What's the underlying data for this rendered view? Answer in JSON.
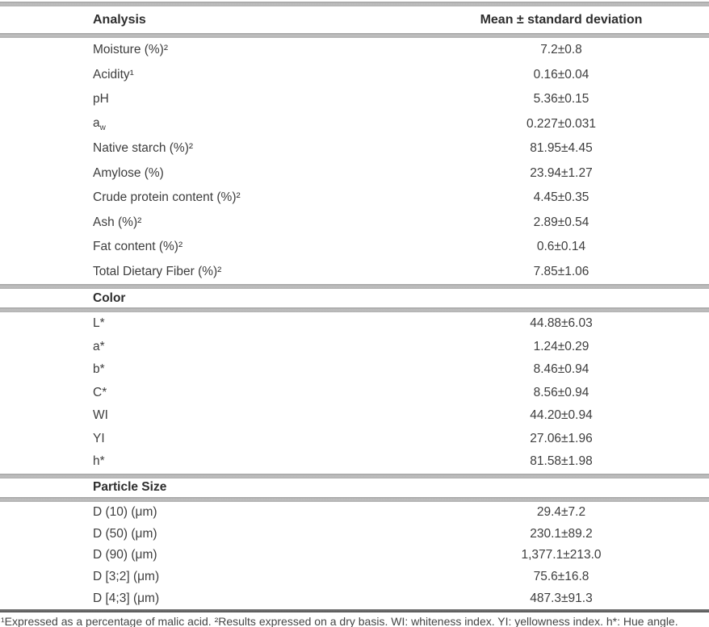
{
  "table": {
    "columns": {
      "analysis": "Analysis",
      "mean": "Mean ± standard deviation"
    },
    "sections": [
      {
        "title": null,
        "rows": [
          {
            "label": "Moisture (%)²",
            "value": "7.2±0.8"
          },
          {
            "label": "Acidity¹",
            "value": "0.16±0.04"
          },
          {
            "label": "pH",
            "value": "5.36±0.15"
          },
          {
            "label": "a",
            "label_sub": "w",
            "value": "0.227±0.031"
          },
          {
            "label": "Native starch (%)²",
            "value": "81.95±4.45"
          },
          {
            "label": "Amylose (%)",
            "value": "23.94±1.27"
          },
          {
            "label": "Crude protein content (%)²",
            "value": "4.45±0.35"
          },
          {
            "label": "Ash (%)²",
            "value": "2.89±0.54"
          },
          {
            "label": "Fat content (%)²",
            "value": "0.6±0.14"
          },
          {
            "label": "Total Dietary Fiber (%)²",
            "value": "7.85±1.06"
          }
        ]
      },
      {
        "title": "Color",
        "rows": [
          {
            "label": "L*",
            "value": "44.88±6.03"
          },
          {
            "label": "a*",
            "value": "1.24±0.29"
          },
          {
            "label": "b*",
            "value": "8.46±0.94"
          },
          {
            "label": "C*",
            "value": "8.56±0.94"
          },
          {
            "label": "WI",
            "value": "44.20±0.94"
          },
          {
            "label": "YI",
            "value": "27.06±1.96"
          },
          {
            "label": "h*",
            "value": "81.58±1.98"
          }
        ]
      },
      {
        "title": "Particle Size",
        "rows": [
          {
            "label": "D (10) (μm)",
            "value": "29.4±7.2"
          },
          {
            "label": "D (50) (μm)",
            "value": "230.1±89.2"
          },
          {
            "label": "D (90) (μm)",
            "value": "1,377.1±213.0"
          },
          {
            "label": "D [3;2] (μm)",
            "value": "75.6±16.8"
          },
          {
            "label": "D [4;3] (μm)",
            "value": "487.3±91.3"
          }
        ]
      }
    ],
    "footnote": "¹Expressed as a percentage of malic acid. ²Results expressed on a dry basis. WI: whiteness index. YI: yellowness index. h*: Hue angle."
  },
  "colors": {
    "rule_gray": "#b3b3b3",
    "rule_dark": "#565656",
    "text": "#3d3d3d",
    "heading": "#2e2e2e",
    "background": "#ffffff"
  }
}
